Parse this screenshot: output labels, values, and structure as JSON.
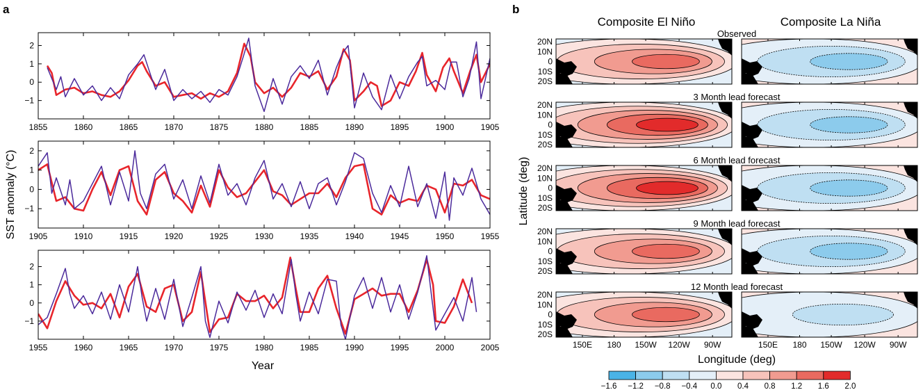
{
  "panel_a_letter": "a",
  "panel_b_letter": "b",
  "colors": {
    "observed": "#e8252b",
    "model": "#4b2a9b",
    "land": "#000000",
    "colorbar": [
      "#4ab3e6",
      "#8ccbec",
      "#bfdff2",
      "#e4eff8",
      "#fbe4e0",
      "#f7c3bb",
      "#f19b90",
      "#e96a60",
      "#e22b2b"
    ]
  },
  "chart_data": [
    {
      "type": "line",
      "panel": "a",
      "xlabel": "Year",
      "ylabel": "SST anomaly (°C)",
      "subplots": [
        {
          "xlim": [
            1855,
            1905
          ],
          "ylim": [
            -2,
            2.7
          ],
          "xticks": [
            1855,
            1860,
            1865,
            1870,
            1875,
            1880,
            1885,
            1890,
            1895,
            1900,
            1905
          ],
          "yticks": [
            -1,
            0,
            1,
            2
          ],
          "series": [
            {
              "color_key": "observed",
              "x": [
                1856,
                1856.5,
                1857,
                1858,
                1859,
                1860,
                1861,
                1862,
                1863,
                1864,
                1865,
                1866,
                1866.5,
                1867,
                1867.5,
                1868,
                1869,
                1870,
                1871,
                1872,
                1873,
                1874,
                1875,
                1876,
                1877,
                1877.8,
                1878.5,
                1879,
                1880,
                1881,
                1882,
                1883,
                1884,
                1885,
                1886,
                1887,
                1888,
                1888.8,
                1889.5,
                1890,
                1891,
                1891.8,
                1892.5,
                1893,
                1894,
                1895,
                1896,
                1896.8,
                1897.5,
                1898,
                1899,
                1899.8,
                1900.5,
                1901,
                1902,
                1902.8,
                1903.5,
                1904,
                1905
              ],
              "y": [
                0.9,
                0.5,
                -0.7,
                -0.4,
                -0.3,
                -0.6,
                -0.5,
                -0.7,
                -0.8,
                -0.5,
                0.1,
                0.9,
                1.1,
                0.6,
                0.2,
                -0.2,
                0.0,
                -0.8,
                -0.7,
                -0.6,
                -0.9,
                -0.6,
                -0.8,
                -0.5,
                0.5,
                2.1,
                1.4,
                0.0,
                -0.6,
                -0.3,
                -0.8,
                -0.3,
                0.5,
                0.3,
                0.6,
                -0.4,
                0.3,
                1.8,
                1.2,
                -1.0,
                -0.5,
                0.0,
                -0.2,
                -1.3,
                -1.0,
                0.0,
                -0.2,
                0.6,
                1.6,
                0.4,
                -0.5,
                0.8,
                1.3,
                0.6,
                -0.6,
                0.6,
                1.5,
                0.0,
                1.0
              ]
            },
            {
              "color_key": "model",
              "x": [
                1856,
                1857,
                1857.5,
                1858,
                1859,
                1860,
                1861,
                1862,
                1863,
                1864,
                1865,
                1866,
                1866.7,
                1867.5,
                1868,
                1869,
                1870,
                1871,
                1872,
                1873,
                1874,
                1875,
                1876,
                1877,
                1877.7,
                1878.3,
                1879,
                1880,
                1881,
                1882,
                1883,
                1884,
                1885,
                1886,
                1887,
                1888,
                1888.7,
                1889.3,
                1890,
                1891,
                1892,
                1893,
                1894,
                1895,
                1896,
                1897,
                1897.5,
                1898,
                1899,
                1900,
                1900.7,
                1901.3,
                1902,
                1902.7,
                1903.5,
                1904,
                1905
              ],
              "y": [
                0.8,
                -0.4,
                0.3,
                -0.8,
                0.2,
                -0.7,
                -0.2,
                -1.0,
                -0.3,
                -0.9,
                0.4,
                1.0,
                1.5,
                0.3,
                -0.4,
                0.7,
                -1.0,
                -0.4,
                -0.9,
                -0.5,
                -1.1,
                -0.4,
                -0.7,
                0.3,
                1.4,
                2.4,
                -0.2,
                -1.6,
                0.2,
                -1.2,
                0.3,
                0.9,
                0.2,
                1.2,
                -0.7,
                0.8,
                1.6,
                2.0,
                -1.4,
                0.5,
                -0.8,
                -1.5,
                0.4,
                -0.9,
                0.3,
                1.1,
                1.4,
                -0.2,
                0.1,
                -0.4,
                1.1,
                1.1,
                -0.8,
                0.2,
                2.2,
                -0.9,
                1.3
              ]
            }
          ]
        },
        {
          "xlim": [
            1905,
            1955
          ],
          "ylim": [
            -2,
            2.5
          ],
          "xticks": [
            1905,
            1910,
            1915,
            1920,
            1925,
            1930,
            1935,
            1940,
            1945,
            1950,
            1955
          ],
          "yticks": [
            -1,
            0,
            1,
            2
          ],
          "series": [
            {
              "color_key": "observed",
              "x": [
                1905,
                1906,
                1907,
                1908,
                1909,
                1910,
                1911,
                1912,
                1913,
                1914,
                1915,
                1916,
                1917,
                1918,
                1919,
                1920,
                1921,
                1922,
                1923,
                1924,
                1925,
                1926,
                1927,
                1928,
                1929,
                1930,
                1931,
                1932,
                1933,
                1934,
                1935,
                1936,
                1937,
                1938,
                1939,
                1940,
                1941,
                1942,
                1943,
                1944,
                1945,
                1946,
                1947,
                1948,
                1949,
                1950,
                1951,
                1952,
                1953,
                1954,
                1955
              ],
              "y": [
                1.0,
                1.3,
                -0.6,
                -0.4,
                -1.0,
                -1.1,
                0.0,
                0.9,
                -0.3,
                1.0,
                1.2,
                -0.6,
                -1.3,
                0.5,
                0.9,
                -0.2,
                -0.6,
                -1.2,
                0.2,
                -0.9,
                1.0,
                0.1,
                -0.4,
                -0.2,
                0.4,
                1.0,
                -0.1,
                -0.3,
                -0.8,
                -0.5,
                -0.2,
                -0.2,
                0.3,
                -0.4,
                0.6,
                1.2,
                1.3,
                -1.0,
                -1.3,
                -0.3,
                -0.7,
                -0.5,
                -0.6,
                0.2,
                0.0,
                -1.2,
                0.3,
                0.2,
                0.5,
                -0.3,
                -0.5
              ]
            },
            {
              "color_key": "model",
              "x": [
                1905,
                1906,
                1906.5,
                1907,
                1908,
                1908.5,
                1909,
                1910,
                1911,
                1912,
                1913,
                1914,
                1915,
                1915.7,
                1916.3,
                1917,
                1918,
                1919,
                1920,
                1921,
                1922,
                1923,
                1924,
                1925,
                1926,
                1927,
                1928,
                1929,
                1930,
                1931,
                1932,
                1933,
                1934,
                1935,
                1936,
                1937,
                1938,
                1939,
                1940,
                1941,
                1942,
                1943,
                1944,
                1945,
                1946,
                1947,
                1948,
                1949,
                1950,
                1950.5,
                1951,
                1952,
                1953,
                1954,
                1955
              ],
              "y": [
                1.2,
                1.9,
                -0.2,
                0.6,
                -0.8,
                0.5,
                -1.0,
                -0.6,
                0.3,
                1.2,
                -0.8,
                0.9,
                -0.6,
                2.0,
                -0.2,
                -1.0,
                0.8,
                1.3,
                -0.5,
                0.5,
                -1.0,
                0.7,
                -0.7,
                1.3,
                -0.3,
                0.3,
                -0.8,
                0.6,
                1.5,
                -0.5,
                0.3,
                -0.9,
                0.4,
                -1.0,
                0.3,
                0.6,
                -0.8,
                0.4,
                1.9,
                1.6,
                -0.2,
                -1.2,
                0.2,
                -0.9,
                1.2,
                -0.9,
                0.3,
                -1.5,
                0.9,
                -1.6,
                0.6,
                -0.3,
                1.1,
                -0.5,
                -1.3
              ]
            }
          ]
        },
        {
          "xlim": [
            1955,
            2005
          ],
          "ylim": [
            -2,
            2.9
          ],
          "xticks": [
            1955,
            1960,
            1965,
            1970,
            1975,
            1980,
            1985,
            1990,
            1995,
            2000,
            2005
          ],
          "yticks": [
            -1,
            0,
            1,
            2
          ],
          "series": [
            {
              "color_key": "observed",
              "x": [
                1955,
                1956,
                1957,
                1958,
                1959,
                1960,
                1961,
                1962,
                1963,
                1964,
                1965,
                1966,
                1967,
                1968,
                1969,
                1970,
                1971,
                1972,
                1973,
                1974,
                1975,
                1976,
                1977,
                1978,
                1979,
                1980,
                1981,
                1982,
                1982.9,
                1983.5,
                1984,
                1985,
                1986,
                1987,
                1988,
                1989,
                1990,
                1991,
                1992,
                1993,
                1994,
                1995,
                1996,
                1997,
                1998,
                1998.7,
                1999,
                2000,
                2001,
                2002,
                2003
              ],
              "y": [
                -0.6,
                -1.4,
                0.1,
                1.2,
                0.4,
                -0.1,
                0.0,
                -0.3,
                0.5,
                -0.8,
                0.9,
                1.6,
                -0.2,
                -0.5,
                0.8,
                1.0,
                -1.0,
                -0.5,
                1.7,
                -1.6,
                -0.9,
                -0.8,
                0.5,
                0.1,
                0.1,
                0.4,
                -0.3,
                0.3,
                2.5,
                0.8,
                -0.5,
                -0.5,
                0.8,
                1.5,
                -0.3,
                -1.7,
                0.2,
                0.5,
                0.8,
                0.4,
                0.5,
                0.5,
                -0.5,
                0.7,
                2.4,
                1.0,
                -1.0,
                -1.1,
                -0.2,
                1.3,
                0.0
              ]
            },
            {
              "color_key": "model",
              "x": [
                1955,
                1956,
                1957,
                1958,
                1958.5,
                1959,
                1960,
                1961,
                1962,
                1963,
                1964,
                1965,
                1966,
                1966.5,
                1967,
                1968,
                1969,
                1970,
                1971,
                1972,
                1973,
                1973.5,
                1974,
                1975,
                1976,
                1977,
                1978,
                1979,
                1980,
                1981,
                1982,
                1983,
                1983.5,
                1984,
                1985,
                1986,
                1987,
                1988,
                1988.5,
                1989,
                1990,
                1991,
                1992,
                1993,
                1994,
                1995,
                1996,
                1997,
                1998,
                1998.5,
                1999,
                2000,
                2001,
                2002,
                2003,
                2003.5
              ],
              "y": [
                -1.2,
                -0.8,
                0.5,
                1.9,
                0.5,
                -0.3,
                0.4,
                -0.6,
                0.6,
                -0.9,
                1.0,
                -0.5,
                2.0,
                0.3,
                -1.0,
                0.8,
                -0.9,
                1.3,
                -1.3,
                0.3,
                2.0,
                -1.0,
                -1.9,
                0.1,
                -1.1,
                0.6,
                -0.4,
                0.7,
                -0.8,
                0.5,
                -0.6,
                2.4,
                0.5,
                -1.0,
                0.6,
                -0.6,
                1.3,
                1.2,
                -1.2,
                -2.0,
                0.4,
                1.4,
                -0.3,
                1.4,
                -0.5,
                1.0,
                -0.9,
                0.6,
                2.6,
                0.5,
                -1.5,
                -0.6,
                0.3,
                -1.0,
                1.4,
                -0.5
              ]
            }
          ]
        }
      ]
    },
    {
      "type": "heatmap",
      "panel": "b",
      "column_titles": [
        "Composite El Niño",
        "Composite La Niña"
      ],
      "row_titles": [
        "Observed",
        "3 Month lead forecast",
        "6 Month lead forecast",
        "9 Month lead forecast",
        "12 Month lead forecast"
      ],
      "ylabel": "Latitude (deg)",
      "xlabel": "Longitude (deg)",
      "lat_ticks": [
        "20N",
        "10N",
        "0",
        "10S",
        "20S"
      ],
      "lon_ticks": [
        "150E",
        "180",
        "150W",
        "120W",
        "90W"
      ],
      "colorbar_ticks": [
        "−1.6",
        "−1.2",
        "−0.8",
        "−0.4",
        "0.0",
        "0.4",
        "0.8",
        "1.2",
        "1.6",
        "2.0"
      ],
      "colorbar_range": [
        -1.6,
        2.0
      ],
      "el_nino_peak": [
        1.5,
        1.6,
        1.6,
        1.4,
        1.3
      ],
      "la_nina_peak": [
        -0.9,
        -1.0,
        -0.8,
        -0.8,
        -0.7
      ]
    }
  ]
}
